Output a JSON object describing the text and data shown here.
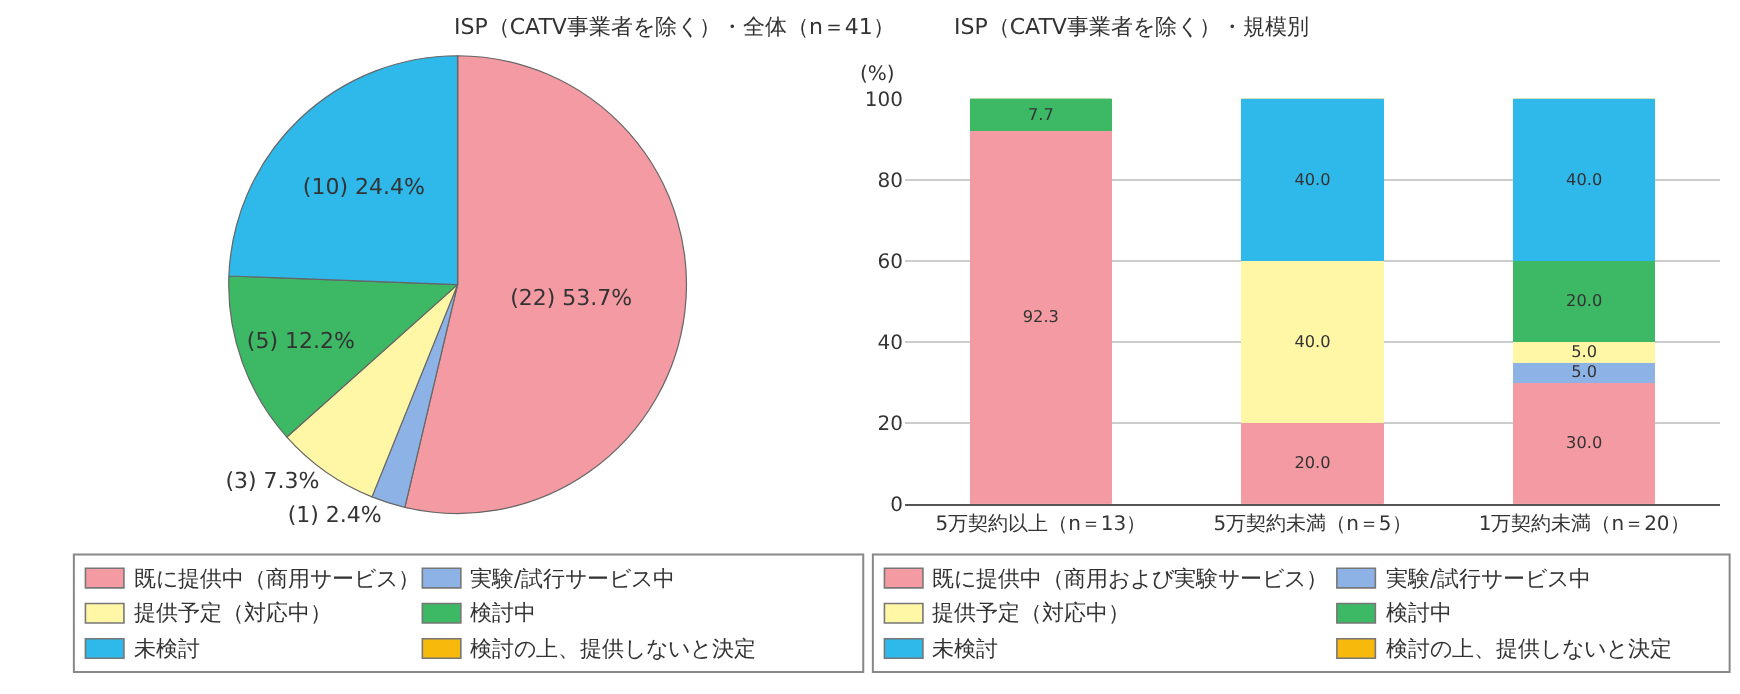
{
  "chart_data": [
    {
      "type": "pie",
      "title": "ISP（CATV事業者を除く）・全体（n＝41）",
      "categories": [
        "既に提供中（商用サービス）",
        "実験/試行サービス中",
        "提供予定（対応中）",
        "検討中",
        "未検討",
        "検討の上、提供しないと決定"
      ],
      "values": [
        53.7,
        2.4,
        7.3,
        12.2,
        24.4,
        0
      ],
      "colors": [
        "#f39aa2",
        "#8db3e6",
        "#fff6a6",
        "#3db865",
        "#2fb8ea",
        "#f6b90c"
      ],
      "value_labels": [
        "(22) 53.7%",
        "(1) 2.4%",
        "(3) 7.3%",
        "(5) 12.2%",
        "(10) 24.4%",
        null
      ],
      "legend": "bottom"
    },
    {
      "type": "bar",
      "stacked": true,
      "title": "ISP（CATV事業者を除く）・規模別",
      "ylabel": "(%)",
      "categories": [
        "5万契約以上（n＝13）",
        "5万契約未満（n＝5）",
        "1万契約未満（n＝20）"
      ],
      "ylim": [
        0,
        100
      ],
      "yticks": [
        0,
        20,
        40,
        60,
        80,
        100
      ],
      "grid": "y",
      "legend": "bottom",
      "series": [
        {
          "name": "既に提供中（商用および実験サービス）",
          "color": "#f39aa2",
          "values": [
            92.3,
            20.0,
            30.0
          ],
          "value_labels": [
            "92.3",
            "20.0",
            "30.0"
          ]
        },
        {
          "name": "実験/試行サービス中",
          "color": "#8db3e6",
          "values": [
            0,
            0,
            5.0
          ],
          "value_labels": [
            null,
            null,
            "5.0"
          ]
        },
        {
          "name": "提供予定（対応中）",
          "color": "#fff6a6",
          "values": [
            0,
            40.0,
            5.0
          ],
          "value_labels": [
            null,
            "40.0",
            "5.0"
          ]
        },
        {
          "name": "検討中",
          "color": "#3db865",
          "values": [
            7.7,
            0,
            20.0
          ],
          "value_labels": [
            "7.7",
            null,
            "20.0"
          ]
        },
        {
          "name": "未検討",
          "color": "#2fb8ea",
          "values": [
            0,
            40.0,
            40.0
          ],
          "value_labels": [
            null,
            "40.0",
            "40.0"
          ]
        },
        {
          "name": "検討の上、提供しないと決定",
          "color": "#f6b90c",
          "values": [
            0,
            0,
            0
          ],
          "value_labels": [
            null,
            null,
            null
          ]
        }
      ]
    }
  ]
}
